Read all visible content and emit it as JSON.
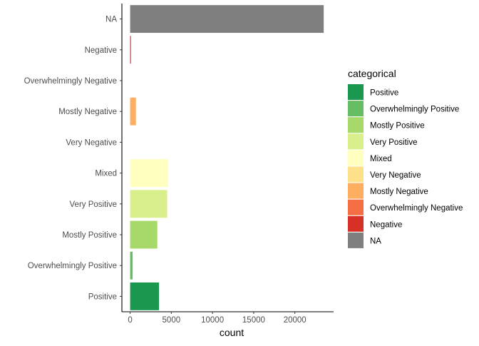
{
  "chart_data": {
    "type": "bar",
    "orientation": "horizontal",
    "categories": [
      "Positive",
      "Overwhelmingly Positive",
      "Mostly Positive",
      "Very Positive",
      "Mixed",
      "Very Negative",
      "Mostly Negative",
      "Overwhelmingly Negative",
      "Negative",
      "NA"
    ],
    "values": [
      3500,
      300,
      3300,
      4500,
      4600,
      0,
      700,
      0,
      100,
      23500
    ],
    "colors": [
      "#1a9850",
      "#66bd63",
      "#a6d96a",
      "#d9ef8b",
      "#ffffbf",
      "#fee08b",
      "#fdae61",
      "#f46d43",
      "#d73027",
      "#7f7f7f"
    ],
    "xlabel": "count",
    "ylabel": "",
    "xlim": [
      -1000,
      24700
    ],
    "xticks": [
      0,
      5000,
      10000,
      15000,
      20000
    ],
    "grid": false,
    "legend": {
      "title": "categorical",
      "position": "right",
      "entries": [
        "Positive",
        "Overwhelmingly Positive",
        "Mostly Positive",
        "Very Positive",
        "Mixed",
        "Very Negative",
        "Mostly Negative",
        "Overwhelmingly Negative",
        "Negative",
        "NA"
      ]
    }
  }
}
